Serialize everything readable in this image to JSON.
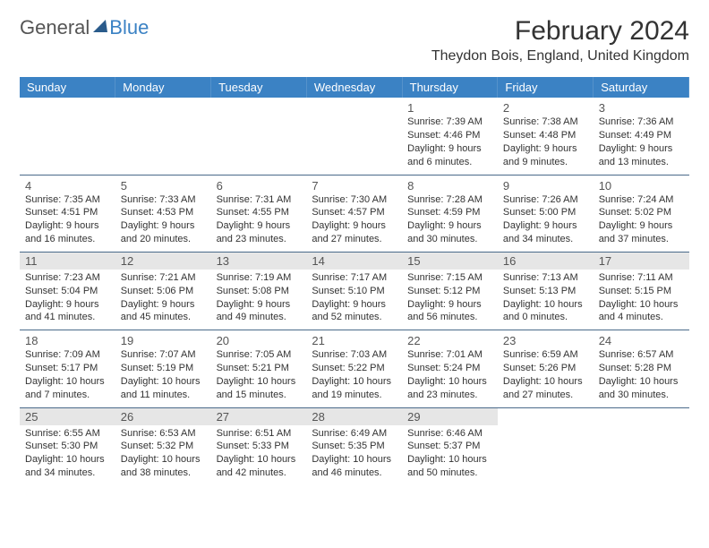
{
  "logo": {
    "part1": "General",
    "part2": "Blue"
  },
  "title": "February 2024",
  "location": "Theydon Bois, England, United Kingdom",
  "colors": {
    "header_bg": "#3b82c4",
    "header_text": "#ffffff",
    "row_border": "#4a6a8a",
    "shade_bg": "#e6e6e6",
    "text": "#333333"
  },
  "dayHeaders": [
    "Sunday",
    "Monday",
    "Tuesday",
    "Wednesday",
    "Thursday",
    "Friday",
    "Saturday"
  ],
  "weeks": [
    [
      null,
      null,
      null,
      null,
      {
        "n": "1",
        "sr": "7:39 AM",
        "ss": "4:46 PM",
        "dl": "9 hours and 6 minutes."
      },
      {
        "n": "2",
        "sr": "7:38 AM",
        "ss": "4:48 PM",
        "dl": "9 hours and 9 minutes."
      },
      {
        "n": "3",
        "sr": "7:36 AM",
        "ss": "4:49 PM",
        "dl": "9 hours and 13 minutes."
      }
    ],
    [
      {
        "n": "4",
        "sr": "7:35 AM",
        "ss": "4:51 PM",
        "dl": "9 hours and 16 minutes."
      },
      {
        "n": "5",
        "sr": "7:33 AM",
        "ss": "4:53 PM",
        "dl": "9 hours and 20 minutes."
      },
      {
        "n": "6",
        "sr": "7:31 AM",
        "ss": "4:55 PM",
        "dl": "9 hours and 23 minutes."
      },
      {
        "n": "7",
        "sr": "7:30 AM",
        "ss": "4:57 PM",
        "dl": "9 hours and 27 minutes."
      },
      {
        "n": "8",
        "sr": "7:28 AM",
        "ss": "4:59 PM",
        "dl": "9 hours and 30 minutes."
      },
      {
        "n": "9",
        "sr": "7:26 AM",
        "ss": "5:00 PM",
        "dl": "9 hours and 34 minutes."
      },
      {
        "n": "10",
        "sr": "7:24 AM",
        "ss": "5:02 PM",
        "dl": "9 hours and 37 minutes."
      }
    ],
    [
      {
        "n": "11",
        "sr": "7:23 AM",
        "ss": "5:04 PM",
        "dl": "9 hours and 41 minutes."
      },
      {
        "n": "12",
        "sr": "7:21 AM",
        "ss": "5:06 PM",
        "dl": "9 hours and 45 minutes."
      },
      {
        "n": "13",
        "sr": "7:19 AM",
        "ss": "5:08 PM",
        "dl": "9 hours and 49 minutes."
      },
      {
        "n": "14",
        "sr": "7:17 AM",
        "ss": "5:10 PM",
        "dl": "9 hours and 52 minutes."
      },
      {
        "n": "15",
        "sr": "7:15 AM",
        "ss": "5:12 PM",
        "dl": "9 hours and 56 minutes."
      },
      {
        "n": "16",
        "sr": "7:13 AM",
        "ss": "5:13 PM",
        "dl": "10 hours and 0 minutes."
      },
      {
        "n": "17",
        "sr": "7:11 AM",
        "ss": "5:15 PM",
        "dl": "10 hours and 4 minutes."
      }
    ],
    [
      {
        "n": "18",
        "sr": "7:09 AM",
        "ss": "5:17 PM",
        "dl": "10 hours and 7 minutes."
      },
      {
        "n": "19",
        "sr": "7:07 AM",
        "ss": "5:19 PM",
        "dl": "10 hours and 11 minutes."
      },
      {
        "n": "20",
        "sr": "7:05 AM",
        "ss": "5:21 PM",
        "dl": "10 hours and 15 minutes."
      },
      {
        "n": "21",
        "sr": "7:03 AM",
        "ss": "5:22 PM",
        "dl": "10 hours and 19 minutes."
      },
      {
        "n": "22",
        "sr": "7:01 AM",
        "ss": "5:24 PM",
        "dl": "10 hours and 23 minutes."
      },
      {
        "n": "23",
        "sr": "6:59 AM",
        "ss": "5:26 PM",
        "dl": "10 hours and 27 minutes."
      },
      {
        "n": "24",
        "sr": "6:57 AM",
        "ss": "5:28 PM",
        "dl": "10 hours and 30 minutes."
      }
    ],
    [
      {
        "n": "25",
        "sr": "6:55 AM",
        "ss": "5:30 PM",
        "dl": "10 hours and 34 minutes."
      },
      {
        "n": "26",
        "sr": "6:53 AM",
        "ss": "5:32 PM",
        "dl": "10 hours and 38 minutes."
      },
      {
        "n": "27",
        "sr": "6:51 AM",
        "ss": "5:33 PM",
        "dl": "10 hours and 42 minutes."
      },
      {
        "n": "28",
        "sr": "6:49 AM",
        "ss": "5:35 PM",
        "dl": "10 hours and 46 minutes."
      },
      {
        "n": "29",
        "sr": "6:46 AM",
        "ss": "5:37 PM",
        "dl": "10 hours and 50 minutes."
      },
      null,
      null
    ]
  ],
  "shadedRows": [
    2,
    4
  ]
}
